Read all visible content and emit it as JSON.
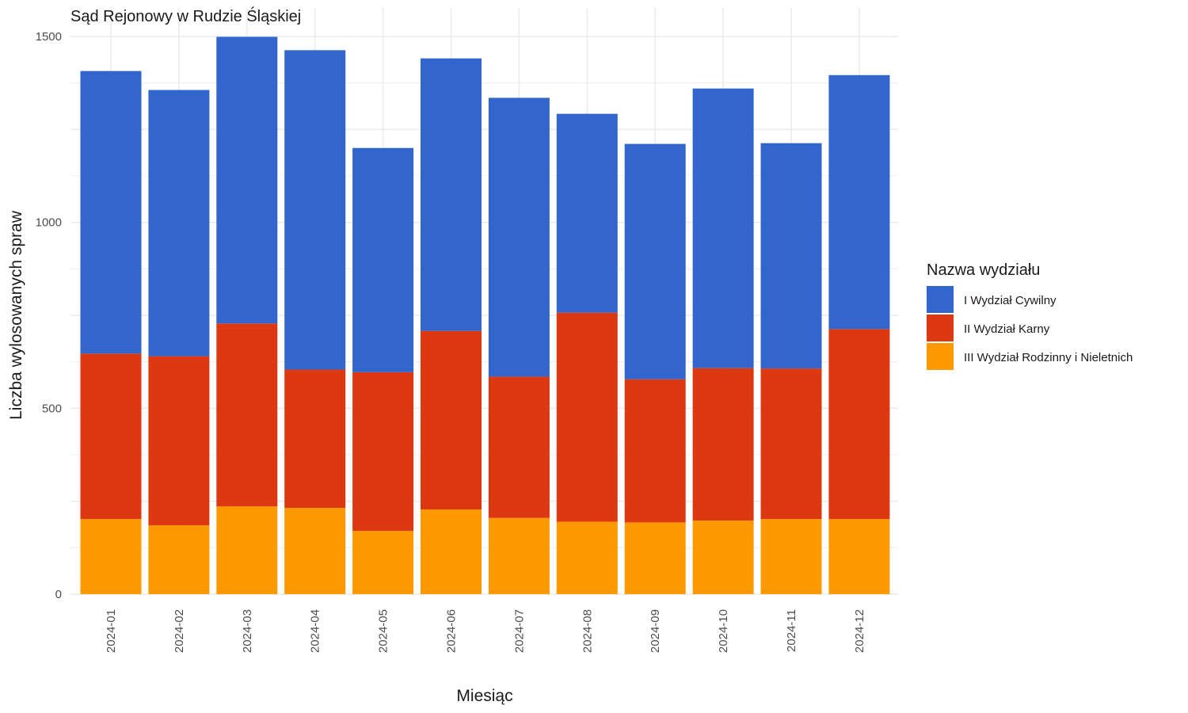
{
  "chart_data": {
    "type": "bar",
    "stacked": true,
    "title": "Sąd Rejonowy w Rudzie Śląskiej",
    "xlabel": "Miesiąc",
    "ylabel": "Liczba wylosowanych spraw",
    "ylim": [
      0,
      1500
    ],
    "yticks": [
      0,
      500,
      1000,
      1500
    ],
    "grid": true,
    "legend_title": "Nazwa wydziału",
    "legend_position": "right",
    "categories": [
      "2024-01",
      "2024-02",
      "2024-03",
      "2024-04",
      "2024-05",
      "2024-06",
      "2024-07",
      "2024-08",
      "2024-09",
      "2024-10",
      "2024-11",
      "2024-12"
    ],
    "series": [
      {
        "name": "III Wydział Rodzinny i Nieletnich",
        "color": "#FF9900",
        "values": [
          202,
          185,
          236,
          232,
          170,
          228,
          205,
          195,
          193,
          198,
          202,
          202
        ]
      },
      {
        "name": "II Wydział Karny",
        "color": "#DC3912",
        "values": [
          445,
          455,
          492,
          372,
          427,
          480,
          380,
          562,
          385,
          410,
          405,
          511
        ]
      },
      {
        "name": "I Wydział Cywilny",
        "color": "#3366CC",
        "values": [
          760,
          716,
          771,
          859,
          603,
          733,
          750,
          535,
          633,
          752,
          606,
          683
        ]
      }
    ],
    "legend_order": [
      "I Wydział Cywilny",
      "II Wydział Karny",
      "III Wydział Rodzinny i Nieletnich"
    ]
  }
}
